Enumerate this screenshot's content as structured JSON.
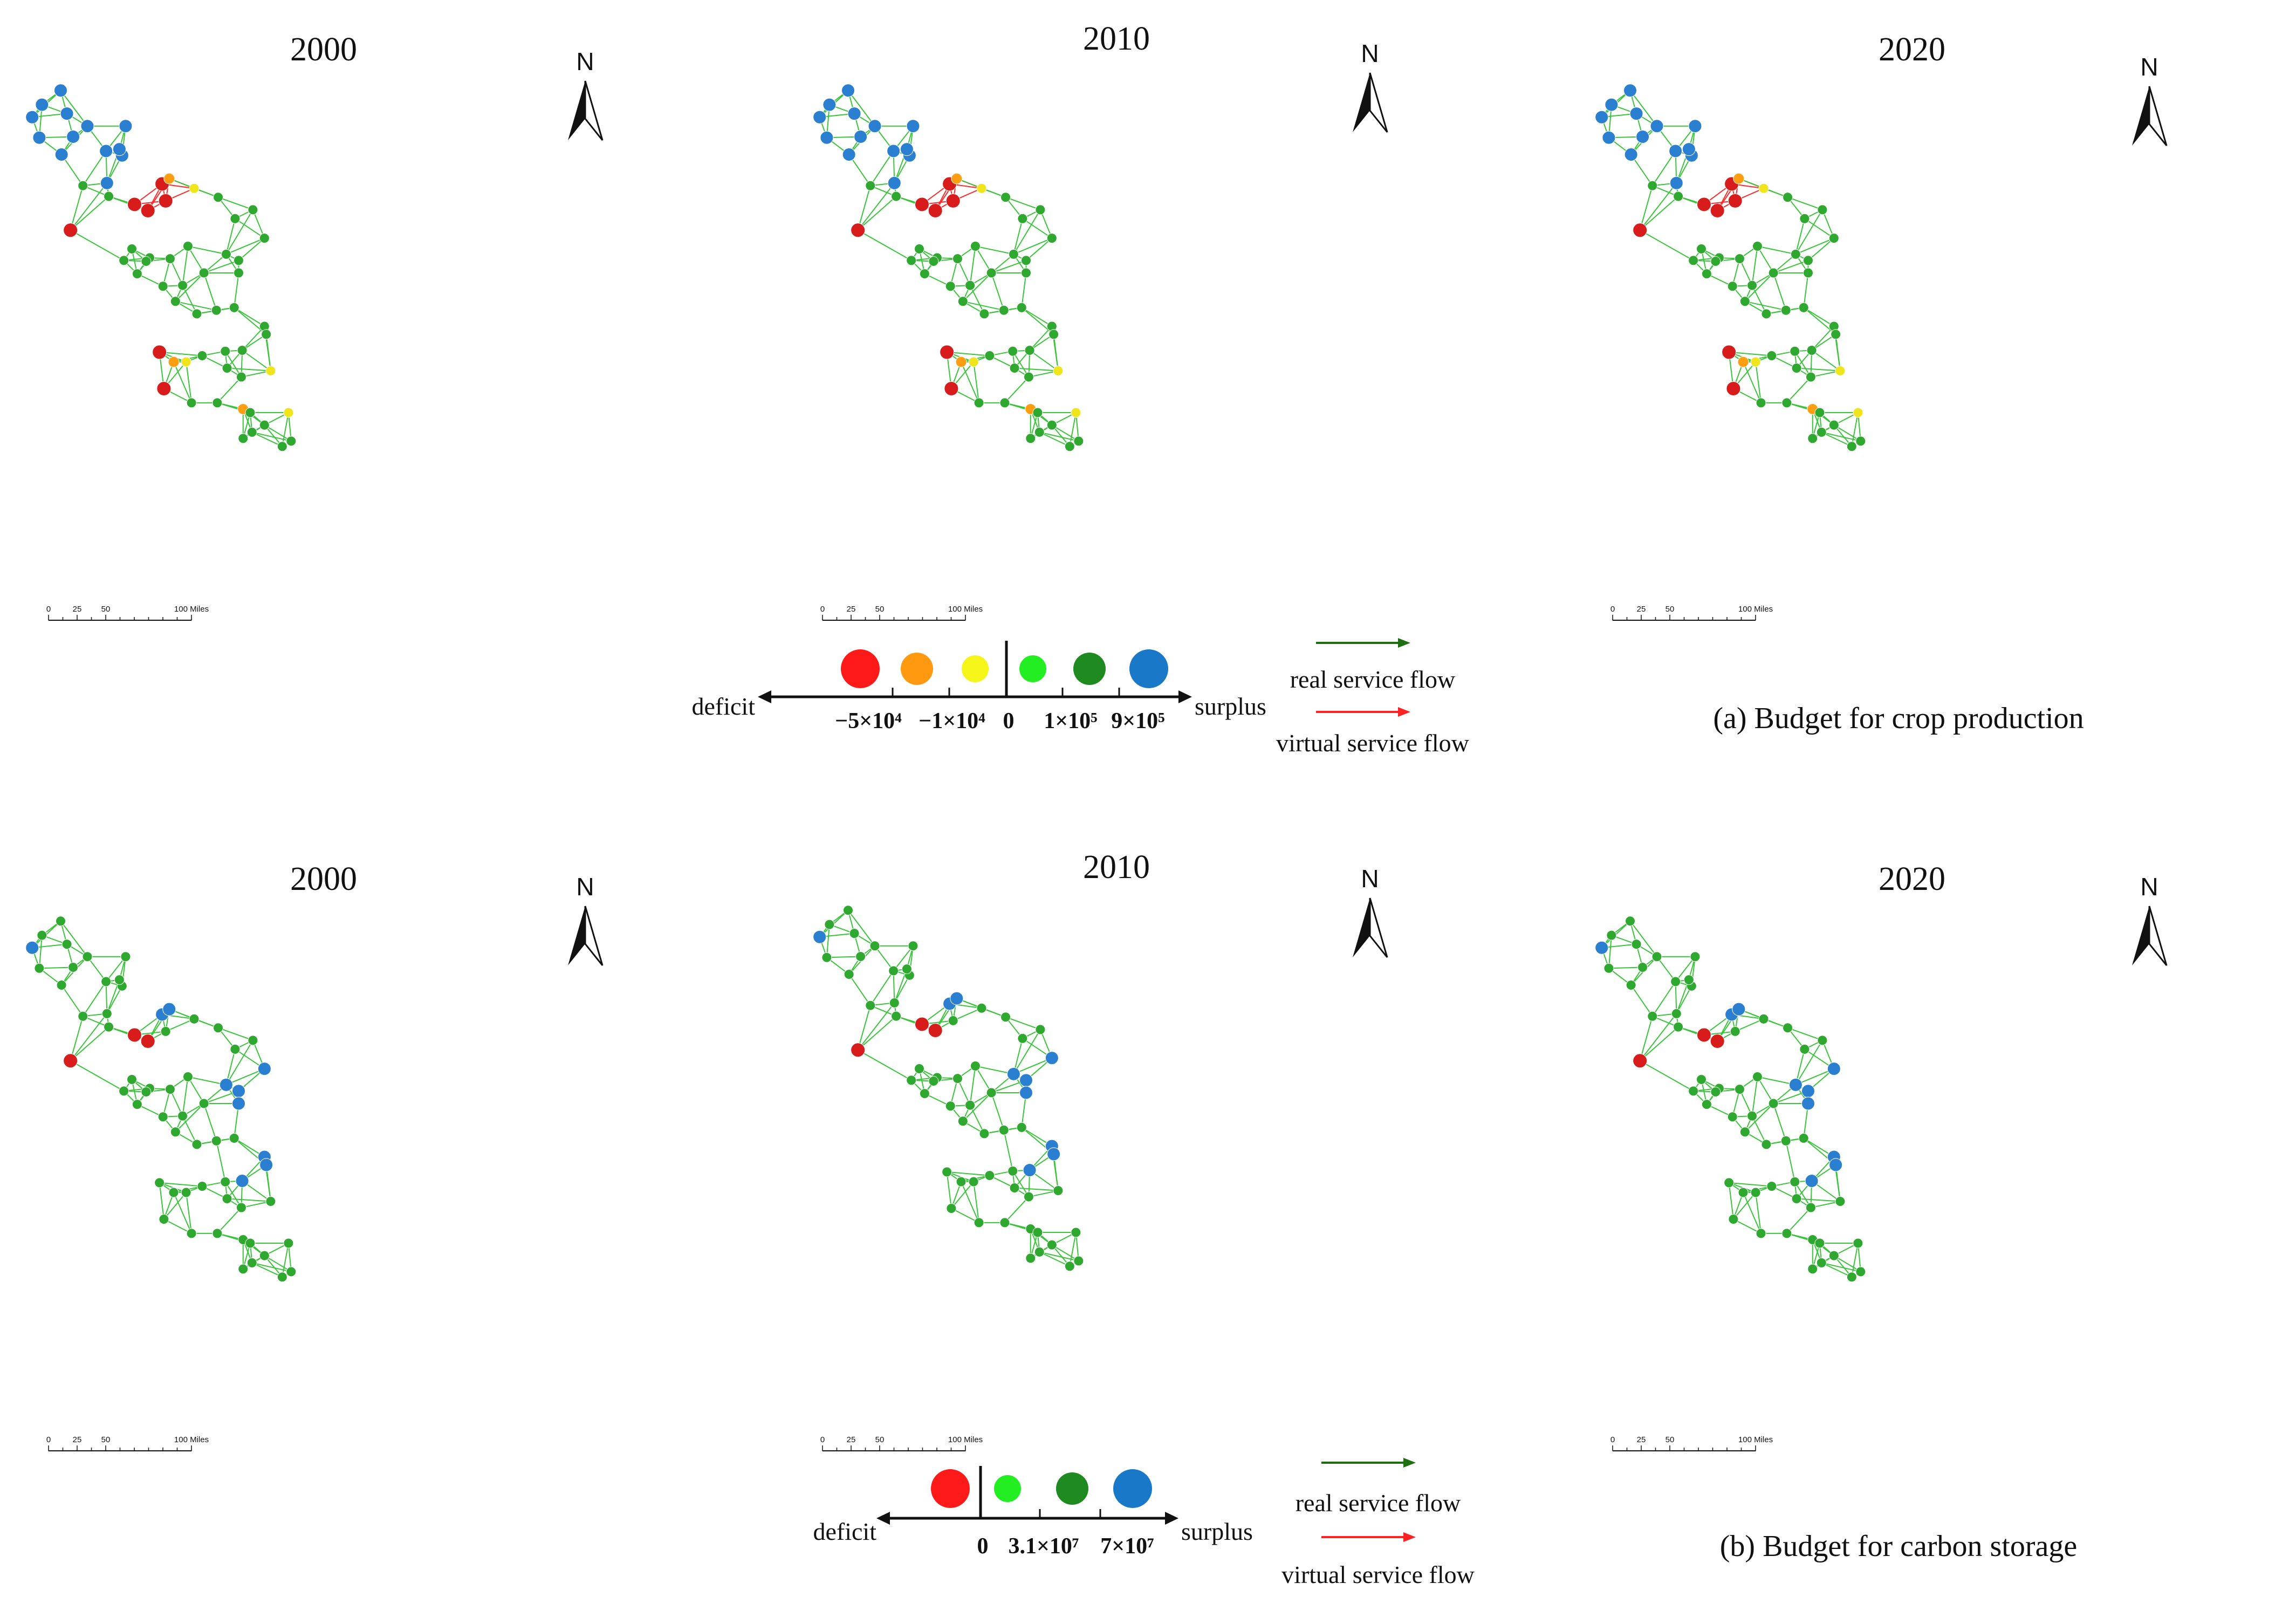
{
  "colors": {
    "edge": "#39c43a",
    "virtual_edge": "#ff2a2a",
    "real_arrow": "#1f6e12",
    "virtual_arrow": "#ff2222",
    "deficit_high": "#ff1a1a",
    "deficit_mid": "#ff9a10",
    "deficit_low": "#f5f51a",
    "surplus_low": "#22ee22",
    "surplus_mid": "#1f8a1f",
    "surplus_high": "#1a78c8",
    "node_blue": "#2a7fd0",
    "node_green": "#2fa82f",
    "node_red": "#d81c1c",
    "node_orange": "#ff9e12",
    "node_yellow": "#f0e41a"
  },
  "panels": {
    "crop": {
      "years": [
        "2000",
        "2010",
        "2020"
      ],
      "caption": "(a)  Budget for crop production",
      "legend": {
        "deficit": "deficit",
        "surplus": "surplus",
        "ticks": [
          "−5×10⁴",
          "−1×10⁴",
          "0",
          "1×10⁵",
          "9×10⁵"
        ],
        "real_flow": "real service flow",
        "virtual_flow": "virtual service flow"
      }
    },
    "carbon": {
      "years": [
        "2000",
        "2010",
        "2020"
      ],
      "caption": "(b)  Budget for carbon storage",
      "legend": {
        "deficit": "deficit",
        "surplus": "surplus",
        "ticks": [
          "0",
          "3.1×10⁷",
          "7×10⁷"
        ],
        "real_flow": "real service flow",
        "virtual_flow": "virtual service flow"
      }
    }
  },
  "north_label": "N",
  "scale_bar": {
    "ticks": [
      "0",
      "25",
      "50",
      "100 Miles"
    ]
  }
}
